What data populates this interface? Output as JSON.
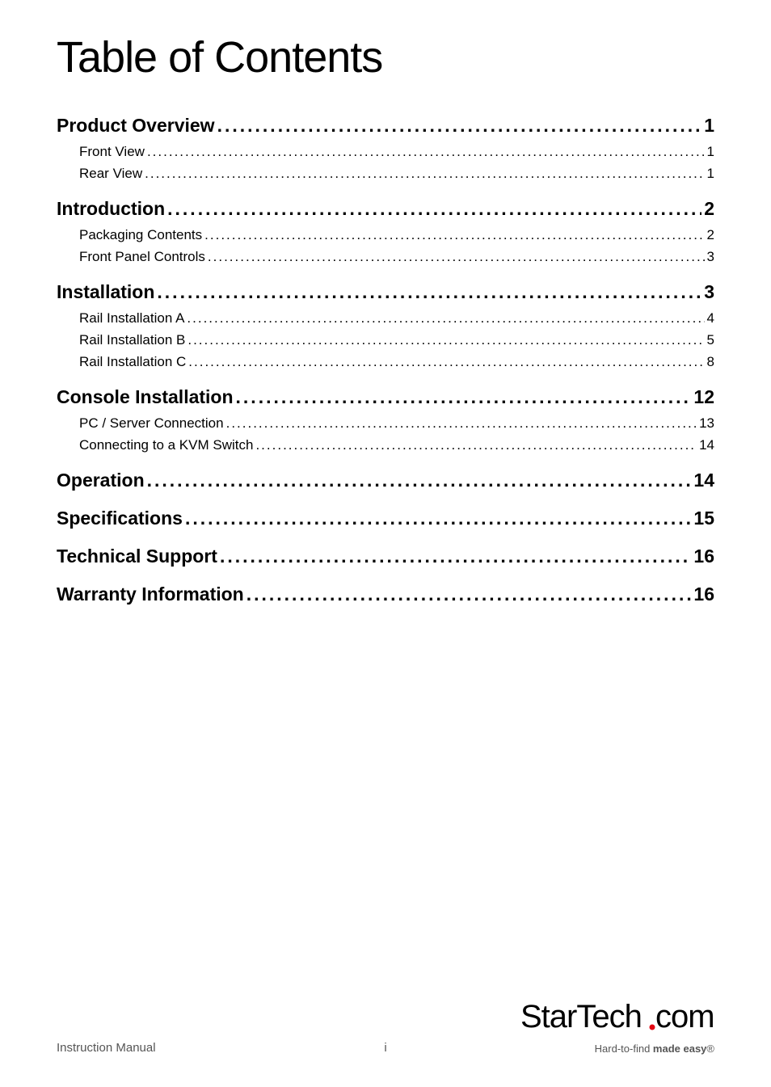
{
  "title": "Table of Contents",
  "toc": [
    {
      "label": "Product Overview",
      "page": "1",
      "level": 1,
      "children": [
        {
          "label": "Front View",
          "page": "1",
          "level": 2
        },
        {
          "label": "Rear View",
          "page": "1",
          "level": 2
        }
      ]
    },
    {
      "label": "Introduction",
      "page": "2",
      "level": 1,
      "children": [
        {
          "label": "Packaging Contents",
          "page": "2",
          "level": 2
        },
        {
          "label": "Front Panel Controls",
          "page": "3",
          "level": 2
        }
      ]
    },
    {
      "label": "Installation ",
      "page": "3",
      "level": 1,
      "children": [
        {
          "label": "Rail Installation A",
          "page": "4",
          "level": 2
        },
        {
          "label": "Rail Installation B",
          "page": "5",
          "level": 2
        },
        {
          "label": "Rail Installation C",
          "page": "8",
          "level": 2
        }
      ]
    },
    {
      "label": "Console Installation",
      "page": "12",
      "level": 1,
      "children": [
        {
          "label": "PC / Server Connection",
          "page": "13",
          "level": 2
        },
        {
          "label": "Connecting to a KVM Switch",
          "page": "14",
          "level": 2
        }
      ]
    },
    {
      "label": "Operation",
      "page": "14",
      "level": 1,
      "children": []
    },
    {
      "label": "Specifications",
      "page": "15",
      "level": 1,
      "children": []
    },
    {
      "label": "Technical Support",
      "page": "16",
      "level": 1,
      "children": []
    },
    {
      "label": "Warranty Information",
      "page": "16",
      "level": 1,
      "children": []
    }
  ],
  "footer": {
    "left_text": "Instruction Manual",
    "page_number": "i",
    "logo": {
      "brand": "StarTech",
      "suffix": ".com",
      "tagline_pre": "Hard-to-find ",
      "tagline_bold": "made easy",
      "tagline_trademark": "®"
    }
  },
  "styling": {
    "page_bg": "#ffffff",
    "text_color": "#000000",
    "footer_text_color": "#555555",
    "title_fontsize": 54,
    "l1_fontsize": 23,
    "l2_fontsize": 17,
    "l2_indent": 28,
    "footer_fontsize": 15,
    "logo_fontsize": 38,
    "tagline_fontsize": 13
  }
}
